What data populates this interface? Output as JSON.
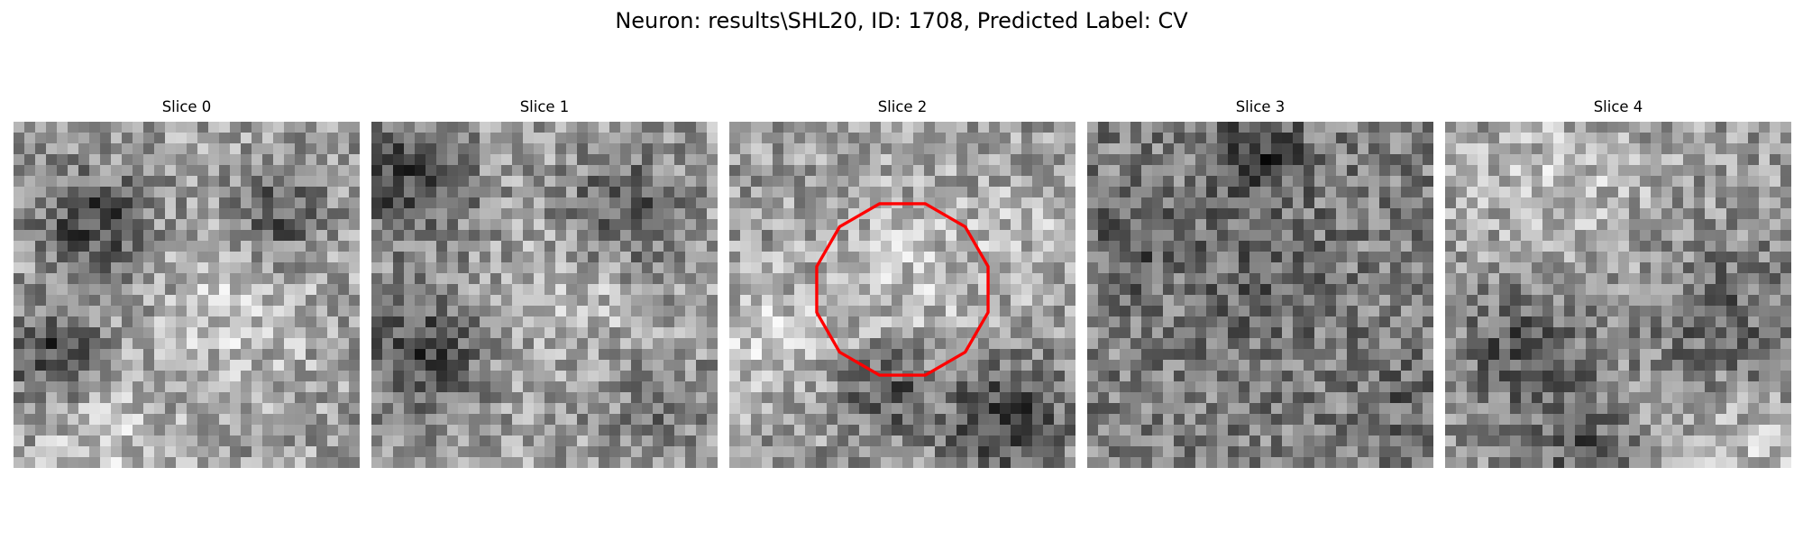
{
  "figure": {
    "title": "Neuron: results\\SHL20, ID: 1708, Predicted Label: CV"
  },
  "panels": [
    {
      "title": "Slice 0",
      "outline": false
    },
    {
      "title": "Slice 1",
      "outline": false
    },
    {
      "title": "Slice 2",
      "outline": true
    },
    {
      "title": "Slice 3",
      "outline": false
    },
    {
      "title": "Slice 4",
      "outline": false
    }
  ],
  "colors": {
    "background": "#ffffff",
    "text": "#000000",
    "outline": "#ff0000",
    "colormap": "gray"
  }
}
